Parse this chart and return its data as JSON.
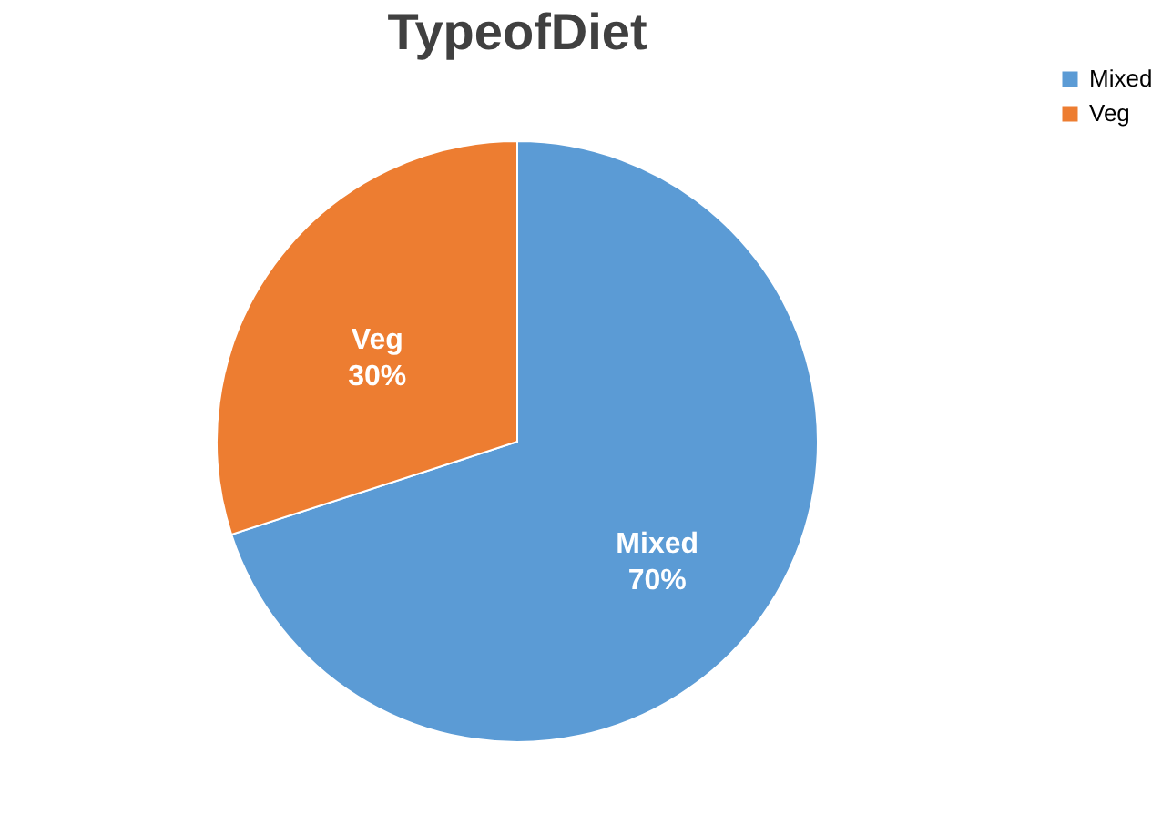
{
  "chart_data": {
    "type": "pie",
    "title": "TypeofDiet",
    "categories": [
      "Mixed",
      "Veg"
    ],
    "values": [
      70,
      30
    ],
    "colors": [
      "#5b9bd5",
      "#ed7d31"
    ],
    "value_labels": [
      "70%",
      "30%"
    ],
    "legend": "right"
  }
}
